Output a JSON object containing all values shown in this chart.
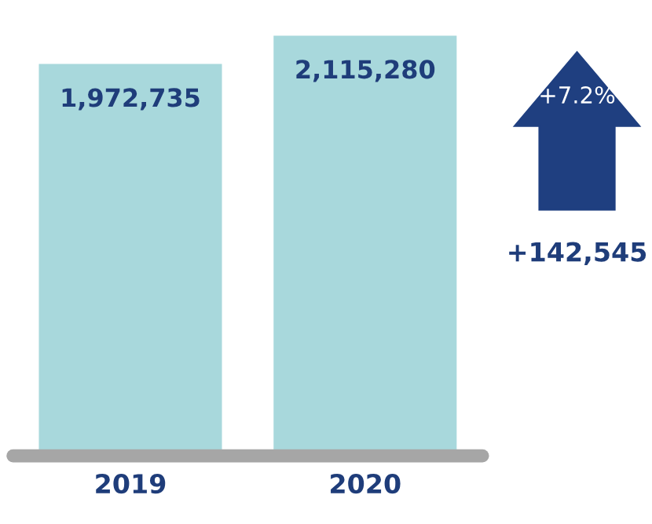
{
  "chart_data": {
    "type": "bar",
    "categories": [
      "2019",
      "2020"
    ],
    "values": [
      1972735,
      2115280
    ],
    "value_labels": [
      "1,972,735",
      "2,115,280"
    ],
    "colors": [
      "#a8d8dc",
      "#a8d8dc"
    ],
    "annotations": [
      "+7.2%",
      "+142,545"
    ],
    "grid": false,
    "legend": false
  }
}
